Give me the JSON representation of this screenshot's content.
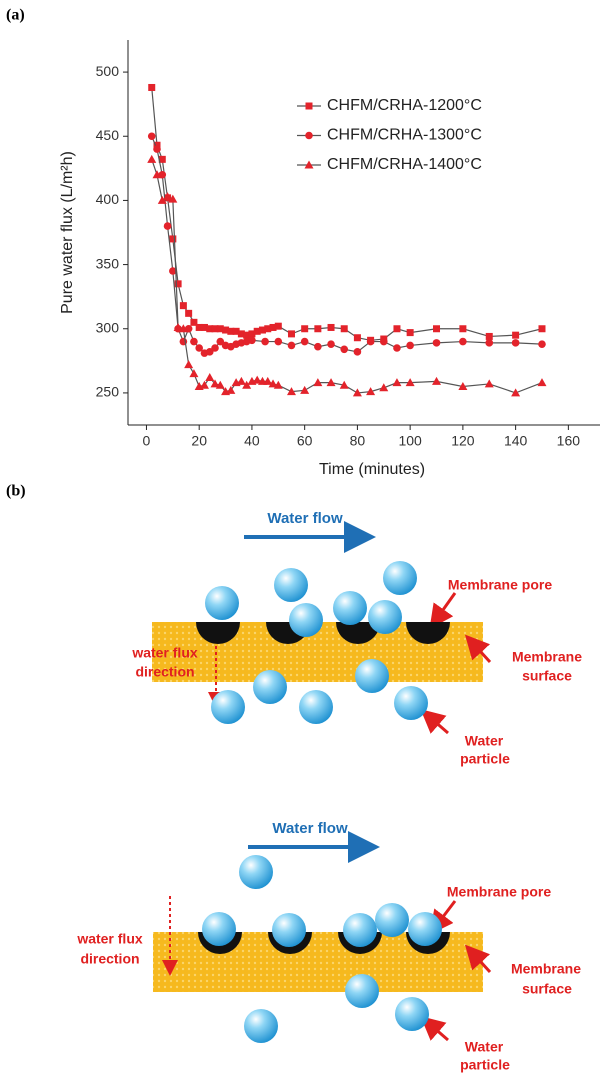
{
  "panel_labels": [
    "(a)",
    "(b)"
  ],
  "chart_data": {
    "type": "line",
    "x_label": "Time (minutes)",
    "y_label": "Pure water flux (L/m²h)",
    "xlim": [
      -7,
      172
    ],
    "ylim": [
      225,
      525
    ],
    "xticks": [
      0,
      20,
      40,
      60,
      80,
      100,
      120,
      140,
      160
    ],
    "yticks": [
      250,
      300,
      350,
      400,
      450,
      500
    ],
    "line_color": "#555555",
    "legend": "upper right",
    "series": [
      {
        "name": "CHFM/CRHA-1200°C",
        "color": "#e3232b",
        "marker": "square",
        "x": [
          2,
          4,
          6,
          8,
          10,
          12,
          14,
          16,
          18,
          20,
          22,
          24,
          26,
          28,
          30,
          32,
          34,
          36,
          38,
          40,
          42,
          44,
          46,
          48,
          50,
          55,
          60,
          65,
          70,
          75,
          80,
          85,
          90,
          95,
          100,
          110,
          120,
          130,
          140,
          150
        ],
        "values": [
          488,
          443,
          432,
          402,
          370,
          335,
          318,
          312,
          305,
          301,
          301,
          300,
          300,
          300,
          299,
          298,
          298,
          296,
          295,
          296,
          298,
          299,
          300,
          301,
          302,
          296,
          300,
          300,
          301,
          300,
          293,
          291,
          292,
          300,
          297,
          300,
          300,
          294,
          295,
          300
        ]
      },
      {
        "name": "CHFM/CRHA-1300°C",
        "color": "#e3232b",
        "marker": "circle",
        "x": [
          2,
          4,
          6,
          8,
          10,
          12,
          14,
          16,
          18,
          20,
          22,
          24,
          26,
          28,
          30,
          32,
          34,
          36,
          38,
          40,
          45,
          50,
          55,
          60,
          65,
          70,
          75,
          80,
          85,
          90,
          95,
          100,
          110,
          120,
          130,
          140,
          150
        ],
        "values": [
          450,
          440,
          420,
          380,
          345,
          300,
          290,
          300,
          290,
          285,
          281,
          282,
          285,
          290,
          287,
          286,
          288,
          289,
          290,
          291,
          290,
          290,
          287,
          290,
          286,
          288,
          284,
          282,
          290,
          290,
          285,
          287,
          289,
          290,
          289,
          289,
          288
        ]
      },
      {
        "name": "CHFM/CRHA-1400°C",
        "color": "#e3232b",
        "marker": "triangle",
        "x": [
          2,
          4,
          6,
          8,
          10,
          12,
          14,
          16,
          18,
          20,
          22,
          24,
          26,
          28,
          30,
          32,
          34,
          36,
          38,
          40,
          42,
          44,
          46,
          48,
          50,
          55,
          60,
          65,
          70,
          75,
          80,
          85,
          90,
          95,
          100,
          110,
          120,
          130,
          140,
          150
        ],
        "values": [
          432,
          420,
          400,
          403,
          401,
          301,
          300,
          272,
          265,
          255,
          256,
          262,
          257,
          256,
          251,
          252,
          258,
          259,
          256,
          259,
          260,
          259,
          259,
          257,
          256,
          251,
          252,
          258,
          258,
          256,
          250,
          251,
          254,
          258,
          258,
          259,
          255,
          257,
          250,
          258
        ]
      }
    ]
  },
  "diagram": {
    "top": {
      "water_flow": "Water flow",
      "membrane_pore": "Membrane pore",
      "membrane_surface": [
        "Membrane",
        "surface"
      ],
      "flux_direction": [
        "water flux",
        "direction"
      ],
      "water_particle": [
        "Water",
        "particle"
      ]
    },
    "bottom": {
      "water_flow": "Water flow",
      "membrane_pore": "Membrane pore",
      "membrane_surface": [
        "Membrane",
        "surface"
      ],
      "flux_direction": [
        "water flux",
        "direction"
      ],
      "water_particle": [
        "Water",
        "particle"
      ]
    }
  }
}
